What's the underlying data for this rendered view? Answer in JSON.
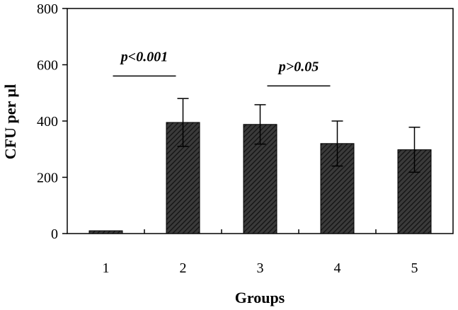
{
  "chart_data": {
    "type": "bar",
    "categories": [
      "1",
      "2",
      "3",
      "4",
      "5"
    ],
    "series": [
      {
        "values": [
          10,
          395,
          388,
          320,
          298
        ],
        "errors": [
          0,
          85,
          70,
          80,
          80
        ]
      }
    ],
    "xlabel": "Groups",
    "ylabel": "CFU per µl",
    "ylim": [
      0,
      800
    ],
    "yticks": [
      "0",
      "200",
      "400",
      "600",
      "800"
    ],
    "grid": false,
    "bar_color": "#333333",
    "bar_pattern": "diagonal-hatch",
    "annotations": [
      {
        "text": "p<0.001",
        "from": "1",
        "to": "2",
        "y": 560
      },
      {
        "text": "p>0.05",
        "from": "3",
        "to": "4",
        "y": 525
      }
    ]
  }
}
